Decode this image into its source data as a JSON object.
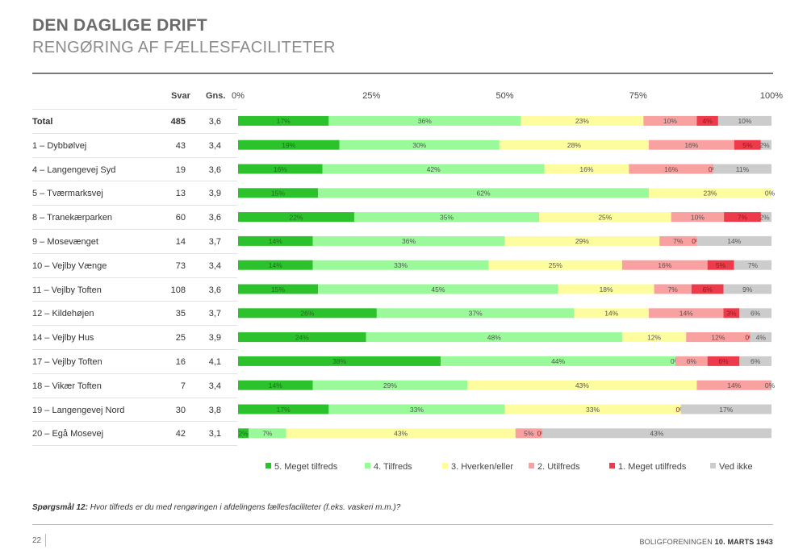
{
  "header": {
    "title": "DEN DAGLIGE DRIFT",
    "subtitle": "RENGØRING AF FÆLLESFACILITETER"
  },
  "table": {
    "col_svar": "Svar",
    "col_gns": "Gns."
  },
  "chart_data": {
    "type": "bar",
    "orientation": "horizontal",
    "stacked": "100%",
    "x_ticks": [
      "0%",
      "25%",
      "50%",
      "75%",
      "100%"
    ],
    "xlim": [
      0,
      100
    ],
    "legend_position": "bottom",
    "series": [
      {
        "name": "5. Meget tilfreds",
        "color": "#2cc22c"
      },
      {
        "name": "4. Tilfreds",
        "color": "#9afa9a"
      },
      {
        "name": "3. Hverken/eller",
        "color": "#fdfda0"
      },
      {
        "name": "2. Utilfreds",
        "color": "#f9a0a0"
      },
      {
        "name": "1. Meget utilfreds",
        "color": "#ee3b4b"
      },
      {
        "name": "Ved ikke",
        "color": "#cccccc"
      }
    ],
    "rows": [
      {
        "name": "Total",
        "svar": "485",
        "gns": "3,6",
        "values": [
          17,
          36,
          23,
          10,
          4,
          10
        ],
        "labels": [
          "17%",
          "36%",
          "23%",
          "10%",
          "4%",
          "10%"
        ]
      },
      {
        "name": "1 – Dybbølvej",
        "svar": "43",
        "gns": "3,4",
        "values": [
          19,
          30,
          28,
          16,
          5,
          2
        ],
        "labels": [
          "19%",
          "30%",
          "28%",
          "16%",
          "5%",
          "2%"
        ]
      },
      {
        "name": "4 – Langengevej Syd",
        "svar": "19",
        "gns": "3,6",
        "values": [
          16,
          42,
          16,
          16,
          0,
          11
        ],
        "labels": [
          "16%",
          "42%",
          "16%",
          "16%",
          "0%",
          "11%"
        ]
      },
      {
        "name": "5 – Tværmarksvej",
        "svar": "13",
        "gns": "3,9",
        "values": [
          15,
          62,
          23,
          0,
          0,
          0
        ],
        "labels": [
          "15%",
          "62%",
          "23%",
          "",
          "",
          "0%"
        ]
      },
      {
        "name": "8 – Tranekærparken",
        "svar": "60",
        "gns": "3,6",
        "values": [
          22,
          35,
          25,
          10,
          7,
          2
        ],
        "labels": [
          "22%",
          "35%",
          "25%",
          "10%",
          "7%",
          "2%"
        ]
      },
      {
        "name": "9 – Mosevænget",
        "svar": "14",
        "gns": "3,7",
        "values": [
          14,
          36,
          29,
          7,
          0,
          14
        ],
        "labels": [
          "14%",
          "36%",
          "29%",
          "7%",
          "0%",
          "14%"
        ]
      },
      {
        "name": "10 – Vejlby Vænge",
        "svar": "73",
        "gns": "3,4",
        "values": [
          14,
          33,
          25,
          16,
          5,
          7
        ],
        "labels": [
          "14%",
          "33%",
          "25%",
          "16%",
          "5%",
          "7%"
        ]
      },
      {
        "name": "11 – Vejlby Toften",
        "svar": "108",
        "gns": "3,6",
        "values": [
          15,
          45,
          18,
          7,
          6,
          9
        ],
        "labels": [
          "15%",
          "45%",
          "18%",
          "7%",
          "6%",
          "9%"
        ]
      },
      {
        "name": "12 – Kildehøjen",
        "svar": "35",
        "gns": "3,7",
        "values": [
          26,
          37,
          14,
          14,
          3,
          6
        ],
        "labels": [
          "26%",
          "37%",
          "14%",
          "14%",
          "3%",
          "6%"
        ]
      },
      {
        "name": "14 – Vejlby Hus",
        "svar": "25",
        "gns": "3,9",
        "values": [
          24,
          48,
          12,
          12,
          0,
          4
        ],
        "labels": [
          "24%",
          "48%",
          "12%",
          "12%",
          "0%",
          "4%"
        ]
      },
      {
        "name": "17 – Vejlby Toften",
        "svar": "16",
        "gns": "4,1",
        "values": [
          38,
          44,
          0,
          6,
          6,
          6
        ],
        "labels": [
          "38%",
          "44%",
          "0%",
          "6%",
          "6%",
          "6%"
        ]
      },
      {
        "name": "18 – Vikær Toften",
        "svar": "7",
        "gns": "3,4",
        "values": [
          14,
          29,
          43,
          14,
          0,
          0
        ],
        "labels": [
          "14%",
          "29%",
          "43%",
          "14%",
          "",
          "0%"
        ]
      },
      {
        "name": "19 – Langengevej Nord",
        "svar": "30",
        "gns": "3,8",
        "values": [
          17,
          33,
          33,
          0,
          0,
          17
        ],
        "labels": [
          "17%",
          "33%",
          "33%",
          "",
          "0%",
          "17%"
        ]
      },
      {
        "name": "20 – Egå Mosevej",
        "svar": "42",
        "gns": "3,1",
        "values": [
          2,
          7,
          43,
          5,
          0,
          43
        ],
        "labels": [
          "2%",
          "7%",
          "43%",
          "5%",
          "0%",
          "43%"
        ]
      }
    ]
  },
  "question": {
    "label": "Spørgsmål 12:",
    "text": " Hvor tilfreds er du med rengøringen i afdelingens fællesfaciliteter (f.eks. vaskeri m.m.)?"
  },
  "footer": {
    "page": "22",
    "org": "BOLIGFORENINGEN ",
    "date": "10. MARTS 1943"
  }
}
